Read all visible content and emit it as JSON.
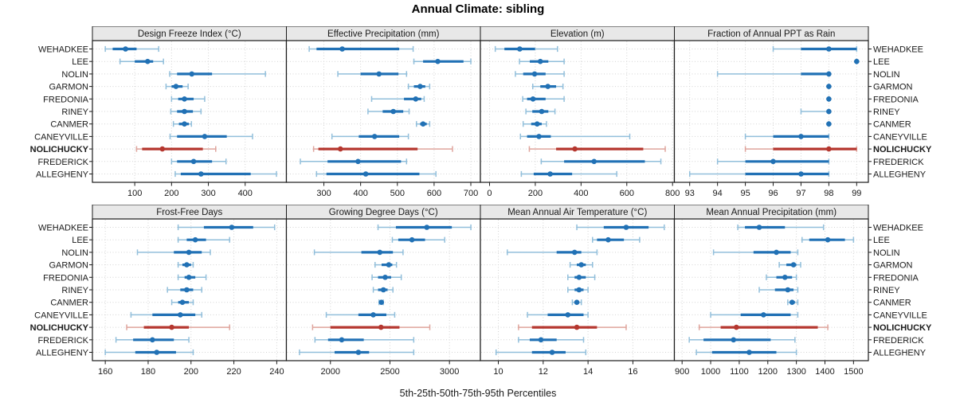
{
  "title": "Annual Climate: sibling",
  "caption": "5th-25th-50th-75th-95th Percentiles",
  "colors": {
    "series_blue": "#2171b5",
    "series_blue_light": "#92bfdb",
    "highlight_red": "#b5372f",
    "highlight_red_light": "#dfa49c",
    "panel_header_bg": "#e8e8e8",
    "grid": "#d4d4d4",
    "border": "#1a1a1a"
  },
  "taxa": [
    {
      "name": "WEHADKEE",
      "highlight": false
    },
    {
      "name": "LEE",
      "highlight": false
    },
    {
      "name": "NOLIN",
      "highlight": false
    },
    {
      "name": "GARMON",
      "highlight": false
    },
    {
      "name": "FREDONIA",
      "highlight": false
    },
    {
      "name": "RINEY",
      "highlight": false
    },
    {
      "name": "CANMER",
      "highlight": false
    },
    {
      "name": "CANEYVILLE",
      "highlight": false
    },
    {
      "name": "NOLICHUCKY",
      "highlight": true
    },
    {
      "name": "FREDERICK",
      "highlight": false
    },
    {
      "name": "ALLEGHENY",
      "highlight": false
    }
  ],
  "chart_data": {
    "type": "scatter",
    "subtype": "horizontal-percentile-errorbar",
    "grid": "dotted",
    "legend": "none",
    "percentile_labels": [
      "p5",
      "p25",
      "p50",
      "p75",
      "p95"
    ],
    "categories": [
      "WEHADKEE",
      "LEE",
      "NOLIN",
      "GARMON",
      "FREDONIA",
      "RINEY",
      "CANMER",
      "CANEYVILLE",
      "NOLICHUCKY",
      "FREDERICK",
      "ALLEGHENY"
    ],
    "panels": [
      {
        "title": "Design Freeze Index (°C)",
        "row": "top",
        "xlim": [
          -15,
          512
        ],
        "xticks": [
          100,
          200,
          300,
          400
        ],
        "values": [
          [
            20,
            40,
            75,
            105,
            165
          ],
          [
            60,
            100,
            135,
            150,
            178
          ],
          [
            195,
            215,
            255,
            310,
            455
          ],
          [
            185,
            200,
            212,
            230,
            245
          ],
          [
            200,
            218,
            235,
            260,
            290
          ],
          [
            198,
            215,
            235,
            258,
            280
          ],
          [
            205,
            220,
            235,
            247,
            254
          ],
          [
            196,
            215,
            290,
            350,
            420
          ],
          [
            105,
            120,
            175,
            285,
            320
          ],
          [
            200,
            215,
            260,
            310,
            348
          ],
          [
            210,
            225,
            280,
            415,
            485
          ]
        ]
      },
      {
        "title": "Effective Precipitation (mm)",
        "row": "top",
        "xlim": [
          198,
          726
        ],
        "xticks": [
          300,
          400,
          500,
          600,
          700
        ],
        "values": [
          [
            260,
            280,
            350,
            505,
            543
          ],
          [
            545,
            570,
            610,
            680,
            700
          ],
          [
            338,
            400,
            450,
            503,
            525
          ],
          [
            530,
            545,
            562,
            576,
            588
          ],
          [
            430,
            518,
            550,
            565,
            573
          ],
          [
            420,
            460,
            489,
            516,
            532
          ],
          [
            552,
            562,
            570,
            580,
            588
          ],
          [
            322,
            395,
            438,
            505,
            530
          ],
          [
            272,
            285,
            345,
            555,
            650
          ],
          [
            236,
            310,
            393,
            510,
            525
          ],
          [
            280,
            307,
            414,
            560,
            605
          ]
        ]
      },
      {
        "title": "Elevation (m)",
        "row": "top",
        "xlim": [
          -40,
          808
        ],
        "xticks": [
          0,
          200,
          400,
          600,
          800
        ],
        "values": [
          [
            25,
            65,
            132,
            199,
            297
          ],
          [
            131,
            176,
            222,
            257,
            326
          ],
          [
            113,
            147,
            197,
            245,
            326
          ],
          [
            189,
            222,
            255,
            291,
            321
          ],
          [
            145,
            164,
            190,
            245,
            326
          ],
          [
            159,
            187,
            228,
            257,
            286
          ],
          [
            147,
            182,
            208,
            228,
            249
          ],
          [
            135,
            164,
            216,
            268,
            613
          ],
          [
            174,
            291,
            373,
            672,
            768
          ],
          [
            226,
            326,
            457,
            679,
            749
          ],
          [
            139,
            193,
            265,
            361,
            556
          ]
        ]
      },
      {
        "title": "Fraction of Annual PPT as Rain",
        "row": "top",
        "xlim": [
          92.45,
          99.42
        ],
        "xticks": [
          93,
          94,
          95,
          96,
          97,
          98,
          99
        ],
        "values": [
          [
            96,
            97,
            98,
            99,
            99
          ],
          [
            99,
            99,
            99,
            99,
            99
          ],
          [
            94,
            97,
            98,
            98,
            98
          ],
          [
            98,
            98,
            98,
            98,
            98
          ],
          [
            98,
            98,
            98,
            98,
            98
          ],
          [
            97,
            98,
            98,
            98,
            98
          ],
          [
            98,
            98,
            98,
            98,
            98
          ],
          [
            95,
            96,
            97,
            98,
            98
          ],
          [
            95,
            96,
            98,
            99,
            99
          ],
          [
            94,
            95,
            96,
            98,
            98
          ],
          [
            93,
            95,
            97,
            98,
            98
          ]
        ]
      },
      {
        "title": "Frost-Free Days",
        "row": "bottom",
        "xlim": [
          154,
          244.5
        ],
        "xticks": [
          160,
          180,
          200,
          220,
          240
        ],
        "values": [
          [
            194,
            206,
            219,
            229,
            239
          ],
          [
            194,
            198,
            202,
            207,
            218
          ],
          [
            175,
            192,
            199,
            205,
            209
          ],
          [
            194,
            196,
            198,
            200,
            201
          ],
          [
            194,
            197,
            199,
            202,
            207
          ],
          [
            189,
            195,
            198,
            201,
            205
          ],
          [
            191,
            194,
            196,
            199,
            201
          ],
          [
            172,
            182,
            195,
            202,
            205
          ],
          [
            170,
            178,
            191,
            199,
            218
          ],
          [
            165,
            173,
            182,
            192,
            199
          ],
          [
            160,
            174,
            184,
            193,
            201
          ]
        ]
      },
      {
        "title": "Growing Degree Days (°C)",
        "row": "bottom",
        "xlim": [
          1630,
          3260
        ],
        "xticks": [
          2000,
          2500,
          3000
        ],
        "values": [
          [
            2400,
            2550,
            2810,
            3020,
            3180
          ],
          [
            2520,
            2570,
            2685,
            2795,
            2960
          ],
          [
            1865,
            2260,
            2415,
            2525,
            2610
          ],
          [
            2375,
            2430,
            2490,
            2520,
            2555
          ],
          [
            2350,
            2400,
            2460,
            2510,
            2595
          ],
          [
            2360,
            2400,
            2445,
            2480,
            2525
          ],
          [
            2408,
            2420,
            2428,
            2436,
            2444
          ],
          [
            1965,
            2235,
            2360,
            2470,
            2540
          ],
          [
            1850,
            2000,
            2425,
            2580,
            2835
          ],
          [
            1870,
            1980,
            2095,
            2280,
            2700
          ],
          [
            1740,
            2035,
            2235,
            2325,
            2700
          ]
        ]
      },
      {
        "title": "Mean Annual Air Temperature (°C)",
        "row": "bottom",
        "xlim": [
          9.2,
          17.85
        ],
        "xticks": [
          10,
          12,
          14,
          16
        ],
        "values": [
          [
            13.5,
            14.7,
            15.7,
            16.7,
            17.4
          ],
          [
            14.2,
            14.4,
            14.9,
            15.6,
            16.3
          ],
          [
            10.4,
            12.6,
            13.4,
            13.7,
            14.4
          ],
          [
            13.2,
            13.5,
            13.7,
            13.9,
            14.2
          ],
          [
            13.1,
            13.4,
            13.6,
            13.9,
            14.3
          ],
          [
            13.1,
            13.4,
            13.6,
            13.8,
            14.0
          ],
          [
            13.3,
            13.4,
            13.5,
            13.6,
            13.7
          ],
          [
            11.3,
            12.2,
            13.1,
            13.8,
            14.0
          ],
          [
            10.9,
            11.5,
            13.5,
            14.4,
            15.7
          ],
          [
            10.9,
            11.4,
            11.9,
            12.6,
            13.8
          ],
          [
            9.9,
            11.5,
            12.4,
            13.0,
            13.9
          ]
        ]
      },
      {
        "title": "Mean Annual Precipitation (mm)",
        "row": "bottom",
        "xlim": [
          873,
          1552
        ],
        "xticks": [
          900,
          1000,
          1100,
          1200,
          1300,
          1400,
          1500
        ],
        "values": [
          [
            1095,
            1120,
            1170,
            1260,
            1395
          ],
          [
            1320,
            1345,
            1410,
            1470,
            1500
          ],
          [
            1010,
            1150,
            1230,
            1280,
            1305
          ],
          [
            1240,
            1265,
            1290,
            1300,
            1315
          ],
          [
            1195,
            1230,
            1260,
            1285,
            1300
          ],
          [
            1170,
            1225,
            1270,
            1290,
            1305
          ],
          [
            1270,
            1278,
            1285,
            1295,
            1305
          ],
          [
            1000,
            1105,
            1185,
            1280,
            1305
          ],
          [
            960,
            1035,
            1090,
            1375,
            1410
          ],
          [
            925,
            975,
            1080,
            1210,
            1295
          ],
          [
            950,
            1005,
            1135,
            1230,
            1300
          ]
        ]
      }
    ]
  }
}
